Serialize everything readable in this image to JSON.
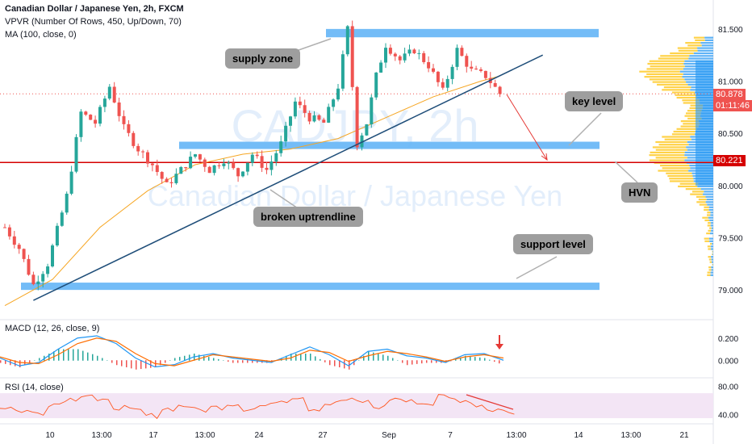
{
  "header": {
    "title": "Canadian Dollar / Japanese Yen, 2h, FXCM",
    "vpvr": "VPVR (Number Of Rows, 450, Up/Down, 70)",
    "ma": "MA (100, close, 0)"
  },
  "watermark": {
    "ticker": "CADJPY, 2h",
    "name": "Canadian Dollar / Japanese Yen"
  },
  "annotations": {
    "supply_zone": "supply zone",
    "key_level": "key level",
    "broken_uptrendline": "broken uptrendline",
    "support_level": "support level",
    "hvn": "HVN"
  },
  "price_tags": {
    "last": "80.878",
    "countdown": "01:11:46",
    "level": "80.221"
  },
  "colors": {
    "candle_up": "#26a69a",
    "candle_down": "#ef5350",
    "zone": "#64b5f6",
    "trendline": "#1f4e79",
    "ma": "#f6a623",
    "level_line": "#d50000",
    "macd_line": "#2196f3",
    "signal_line": "#ff6d00",
    "rsi_line": "#ff5722",
    "rsi_band": "#f3e5f5",
    "vp_up": "#42a5f5",
    "vp_down": "#ffca28"
  },
  "macd": {
    "label": "MACD (12, 26, close, 9)"
  },
  "rsi": {
    "label": "RSI (14, close)"
  },
  "chart_data": [
    {
      "type": "candlestick",
      "title": "Canadian Dollar / Japanese Yen, 2h, FXCM",
      "x_ticks": [
        "10",
        "13:00",
        "17",
        "13:00",
        "24",
        "27",
        "Sep",
        "7",
        "13:00",
        "14",
        "13:00",
        "21"
      ],
      "y_ticks": [
        81.5,
        81.0,
        80.5,
        80.0,
        79.5,
        79.0
      ],
      "ylim": [
        78.8,
        81.7
      ],
      "close_path": [
        {
          "x": 0,
          "y": 79.6
        },
        {
          "x": 3,
          "y": 79.4
        },
        {
          "x": 6,
          "y": 79.05
        },
        {
          "x": 9,
          "y": 79.25
        },
        {
          "x": 13,
          "y": 79.9
        },
        {
          "x": 16,
          "y": 80.7
        },
        {
          "x": 19,
          "y": 80.6
        },
        {
          "x": 22,
          "y": 80.95
        },
        {
          "x": 25,
          "y": 80.55
        },
        {
          "x": 28,
          "y": 80.35
        },
        {
          "x": 31,
          "y": 80.2
        },
        {
          "x": 34,
          "y": 80.0
        },
        {
          "x": 37,
          "y": 80.15
        },
        {
          "x": 40,
          "y": 80.3
        },
        {
          "x": 43,
          "y": 80.15
        },
        {
          "x": 46,
          "y": 80.25
        },
        {
          "x": 49,
          "y": 80.1
        },
        {
          "x": 52,
          "y": 80.3
        },
        {
          "x": 55,
          "y": 80.15
        },
        {
          "x": 58,
          "y": 80.4
        },
        {
          "x": 61,
          "y": 80.8
        },
        {
          "x": 64,
          "y": 80.65
        },
        {
          "x": 67,
          "y": 80.6
        },
        {
          "x": 70,
          "y": 80.95
        },
        {
          "x": 72,
          "y": 81.5
        },
        {
          "x": 74,
          "y": 80.4
        },
        {
          "x": 76,
          "y": 80.6
        },
        {
          "x": 78,
          "y": 81.05
        },
        {
          "x": 80,
          "y": 81.35
        },
        {
          "x": 83,
          "y": 81.2
        },
        {
          "x": 86,
          "y": 81.3
        },
        {
          "x": 89,
          "y": 81.15
        },
        {
          "x": 92,
          "y": 80.9
        },
        {
          "x": 95,
          "y": 81.3
        },
        {
          "x": 98,
          "y": 81.1
        },
        {
          "x": 101,
          "y": 81.05
        },
        {
          "x": 104,
          "y": 80.88
        }
      ],
      "ma100_path": [
        {
          "x": 0,
          "y": 78.85
        },
        {
          "x": 10,
          "y": 79.1
        },
        {
          "x": 20,
          "y": 79.6
        },
        {
          "x": 30,
          "y": 79.95
        },
        {
          "x": 40,
          "y": 80.2
        },
        {
          "x": 50,
          "y": 80.3
        },
        {
          "x": 60,
          "y": 80.35
        },
        {
          "x": 70,
          "y": 80.45
        },
        {
          "x": 80,
          "y": 80.65
        },
        {
          "x": 90,
          "y": 80.85
        },
        {
          "x": 100,
          "y": 81.0
        },
        {
          "x": 104,
          "y": 81.05
        }
      ],
      "supply_zone": [
        81.42,
        81.5
      ],
      "key_level_zone": [
        80.35,
        80.42
      ],
      "support_zone": [
        79.0,
        79.07
      ],
      "horizontal_level": 80.221,
      "last_price": 80.878,
      "uptrend_line": {
        "from": {
          "x": 6,
          "y": 78.9
        },
        "to": {
          "x": 113,
          "y": 81.25
        }
      }
    },
    {
      "type": "line",
      "title": "MACD (12, 26, close, 9)",
      "y_ticks": [
        0.2,
        0.0
      ],
      "ylim": [
        -0.1,
        0.3
      ],
      "series": [
        {
          "values": [
            0.02,
            -0.05,
            -0.02,
            0.1,
            0.2,
            0.22,
            0.15,
            0.02,
            -0.06,
            -0.04,
            0.03,
            0.06,
            0.02,
            0.0,
            -0.02,
            0.05,
            0.12,
            0.05,
            -0.05,
            0.08,
            0.1,
            0.04,
            0.02,
            -0.02,
            0.05,
            0.06,
            0.0
          ]
        },
        {
          "values": [
            0.03,
            -0.02,
            -0.03,
            0.05,
            0.15,
            0.2,
            0.17,
            0.06,
            -0.03,
            -0.05,
            0.0,
            0.05,
            0.03,
            0.01,
            -0.01,
            0.02,
            0.09,
            0.07,
            -0.01,
            0.04,
            0.08,
            0.06,
            0.03,
            -0.01,
            0.03,
            0.05,
            0.02
          ]
        }
      ]
    },
    {
      "type": "line",
      "title": "RSI (14, close)",
      "y_ticks": [
        80.0,
        40.0
      ],
      "ylim": [
        30,
        85
      ],
      "series": [
        {
          "values": [
            50,
            45,
            42,
            55,
            62,
            68,
            58,
            50,
            45,
            38,
            48,
            52,
            46,
            50,
            55,
            48,
            52,
            60,
            65,
            48,
            55,
            60,
            58,
            50,
            62,
            58,
            55,
            66,
            60,
            54,
            48,
            44
          ]
        }
      ]
    }
  ]
}
